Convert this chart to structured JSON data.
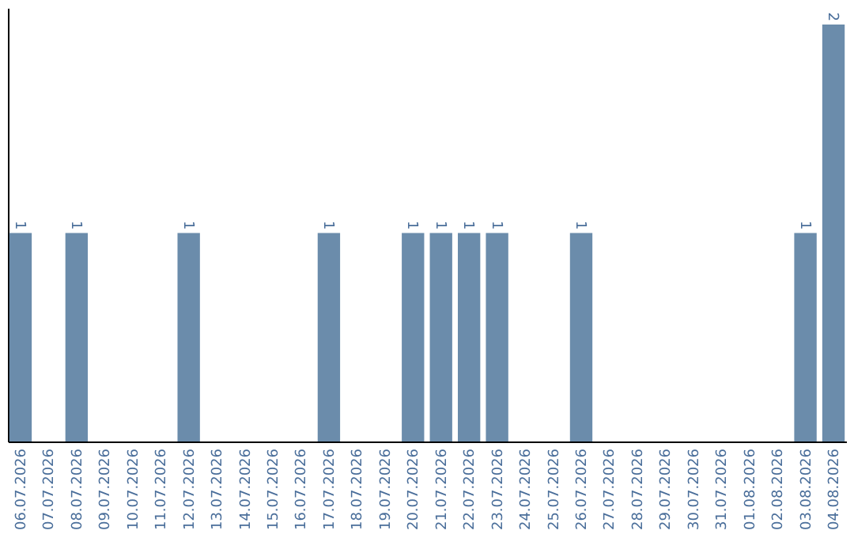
{
  "chart_data": {
    "type": "bar",
    "categories": [
      "06.07.2026",
      "07.07.2026",
      "08.07.2026",
      "09.07.2026",
      "10.07.2026",
      "11.07.2026",
      "12.07.2026",
      "13.07.2026",
      "14.07.2026",
      "15.07.2026",
      "16.07.2026",
      "17.07.2026",
      "18.07.2026",
      "19.07.2026",
      "20.07.2026",
      "21.07.2026",
      "22.07.2026",
      "23.07.2026",
      "24.07.2026",
      "25.07.2026",
      "26.07.2026",
      "27.07.2026",
      "28.07.2026",
      "29.07.2026",
      "30.07.2026",
      "31.07.2026",
      "01.08.2026",
      "02.08.2026",
      "03.08.2026",
      "04.08.2026"
    ],
    "values": [
      1,
      0,
      1,
      0,
      0,
      0,
      1,
      0,
      0,
      0,
      0,
      1,
      0,
      0,
      1,
      1,
      1,
      1,
      0,
      0,
      1,
      0,
      0,
      0,
      0,
      0,
      0,
      0,
      1,
      2
    ],
    "color": "#6b8cab",
    "ylim": [
      0,
      2.08
    ],
    "value_labels": [
      "1",
      null,
      "1",
      null,
      null,
      null,
      "1",
      null,
      null,
      null,
      null,
      "1",
      null,
      null,
      "1",
      "1",
      "1",
      "1",
      null,
      null,
      "1",
      null,
      null,
      null,
      null,
      null,
      null,
      null,
      "1",
      "2"
    ],
    "tick_labels": "x",
    "grid": false
  }
}
